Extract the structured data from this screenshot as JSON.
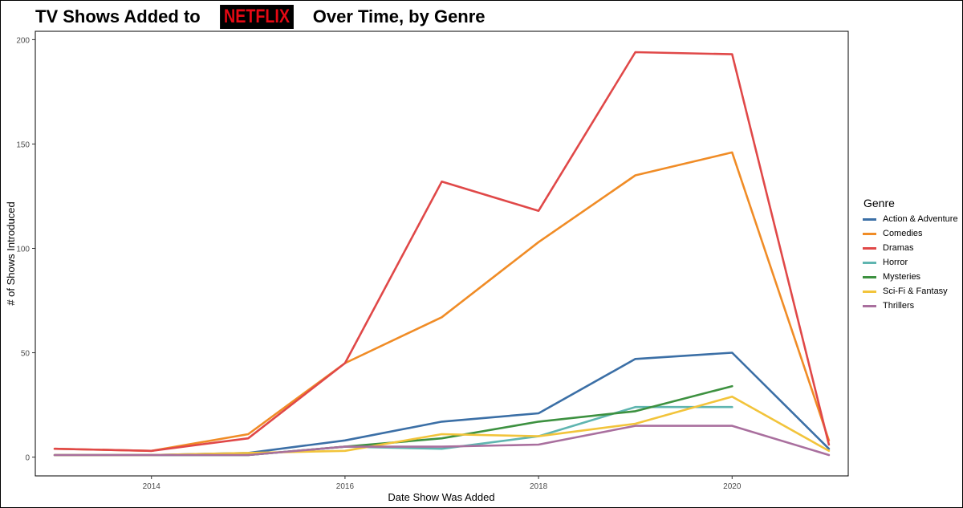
{
  "title": {
    "prefix": "TV Shows Added to",
    "logo": "NETFLIX",
    "suffix": "Over Time, by Genre"
  },
  "chart_data": {
    "type": "line",
    "title": "TV Shows Added to NETFLIX Over Time, by Genre",
    "xlabel": "Date Show Was Added",
    "ylabel": "# of Shows Introduced",
    "xlim": [
      2012.8,
      2021.2
    ],
    "ylim": [
      -9,
      204
    ],
    "xticks": [
      2014,
      2016,
      2018,
      2020
    ],
    "yticks": [
      0,
      50,
      100,
      150,
      200
    ],
    "grid": false,
    "legend_title": "Genre",
    "legend_position": "right",
    "series": [
      {
        "name": "Action & Adventure",
        "color": "#3b6fa6",
        "points": [
          [
            2013,
            1
          ],
          [
            2014,
            1
          ],
          [
            2015,
            2
          ],
          [
            2016,
            8
          ],
          [
            2017,
            17
          ],
          [
            2018,
            21
          ],
          [
            2019,
            47
          ],
          [
            2020,
            50
          ],
          [
            2021,
            4
          ]
        ]
      },
      {
        "name": "Comedies",
        "color": "#f08c26",
        "points": [
          [
            2013,
            4
          ],
          [
            2014,
            3
          ],
          [
            2015,
            11
          ],
          [
            2016,
            45
          ],
          [
            2017,
            67
          ],
          [
            2018,
            103
          ],
          [
            2019,
            135
          ],
          [
            2020,
            146
          ],
          [
            2021,
            8
          ]
        ]
      },
      {
        "name": "Dramas",
        "color": "#e04848",
        "points": [
          [
            2013,
            4
          ],
          [
            2014,
            3
          ],
          [
            2015,
            9
          ],
          [
            2016,
            45
          ],
          [
            2017,
            132
          ],
          [
            2018,
            118
          ],
          [
            2019,
            194
          ],
          [
            2020,
            193
          ],
          [
            2021,
            6
          ]
        ]
      },
      {
        "name": "Horror",
        "color": "#5fb5b0",
        "points": [
          [
            2013,
            1
          ],
          [
            2014,
            1
          ],
          [
            2015,
            1
          ],
          [
            2016,
            5
          ],
          [
            2017,
            4
          ],
          [
            2018,
            10
          ],
          [
            2019,
            24
          ],
          [
            2020,
            24
          ]
        ]
      },
      {
        "name": "Mysteries",
        "color": "#3d9140",
        "points": [
          [
            2013,
            1
          ],
          [
            2014,
            1
          ],
          [
            2015,
            1
          ],
          [
            2016,
            5
          ],
          [
            2017,
            9
          ],
          [
            2018,
            17
          ],
          [
            2019,
            22
          ],
          [
            2020,
            34
          ]
        ]
      },
      {
        "name": "Sci-Fi & Fantasy",
        "color": "#f2c43b",
        "points": [
          [
            2013,
            1
          ],
          [
            2014,
            1
          ],
          [
            2015,
            2
          ],
          [
            2016,
            3
          ],
          [
            2017,
            11
          ],
          [
            2018,
            10
          ],
          [
            2019,
            16
          ],
          [
            2020,
            29
          ],
          [
            2021,
            3
          ]
        ]
      },
      {
        "name": "Thrillers",
        "color": "#a96f9e",
        "points": [
          [
            2013,
            1
          ],
          [
            2014,
            1
          ],
          [
            2015,
            1
          ],
          [
            2016,
            5
          ],
          [
            2017,
            5
          ],
          [
            2018,
            6
          ],
          [
            2019,
            15
          ],
          [
            2020,
            15
          ],
          [
            2021,
            1
          ]
        ]
      }
    ]
  }
}
